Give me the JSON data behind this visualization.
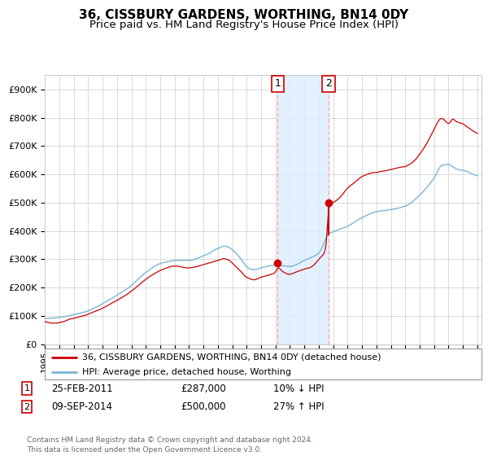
{
  "title": "36, CISSBURY GARDENS, WORTHING, BN14 0DY",
  "subtitle": "Price paid vs. HM Land Registry's House Price Index (HPI)",
  "ylim": [
    0,
    950000
  ],
  "yticks": [
    0,
    100000,
    200000,
    300000,
    400000,
    500000,
    600000,
    700000,
    800000,
    900000
  ],
  "ytick_labels": [
    "£0",
    "£100K",
    "£200K",
    "£300K",
    "£400K",
    "£500K",
    "£600K",
    "£700K",
    "£800K",
    "£900K"
  ],
  "hpi_color": "#7ab3d4",
  "price_color": "#cc0000",
  "transaction1_date": 2011.15,
  "transaction1_price": 287000,
  "transaction2_date": 2014.69,
  "transaction2_price": 500000,
  "legend_line1": "36, CISSBURY GARDENS, WORTHING, BN14 0DY (detached house)",
  "legend_line2": "HPI: Average price, detached house, Worthing",
  "note1_label": "1",
  "note1_date": "25-FEB-2011",
  "note1_price": "£287,000",
  "note1_pct": "10% ↓ HPI",
  "note2_label": "2",
  "note2_date": "09-SEP-2014",
  "note2_price": "£500,000",
  "note2_pct": "27% ↑ HPI",
  "copyright": "Contains HM Land Registry data © Crown copyright and database right 2024.\nThis data is licensed under the Open Government Licence v3.0.",
  "background_color": "#ffffff",
  "grid_color": "#cccccc",
  "shade_color": "#ddeeff",
  "vline_color": "#ffaaaa",
  "title_fontsize": 11,
  "subtitle_fontsize": 9.5
}
